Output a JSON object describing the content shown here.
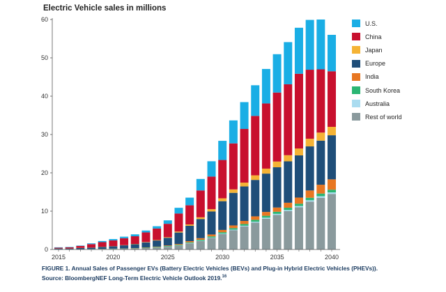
{
  "chart_data": {
    "type": "bar",
    "stacked": true,
    "title": "Electric Vehicle sales in millions",
    "ylim": [
      0,
      60
    ],
    "yticks": [
      0,
      10,
      20,
      30,
      40,
      50,
      60
    ],
    "xtick_labels": [
      "2015",
      "2020",
      "2025",
      "2030",
      "2035",
      "2040"
    ],
    "grid": false,
    "legend_position": "right",
    "categories": [
      "2015",
      "2016",
      "2017",
      "2018",
      "2019",
      "2020",
      "2021",
      "2022",
      "2023",
      "2024",
      "2025",
      "2026",
      "2027",
      "2028",
      "2029",
      "2030",
      "2031",
      "2032",
      "2033",
      "2034",
      "2035",
      "2036",
      "2037",
      "2038",
      "2039",
      "2040"
    ],
    "series": [
      {
        "name": "Rest of world",
        "color": "#8a9a9d",
        "values": [
          0.05,
          0.05,
          0.08,
          0.1,
          0.12,
          0.15,
          0.2,
          0.25,
          0.35,
          0.5,
          0.7,
          1.0,
          1.6,
          2.2,
          3.0,
          4.0,
          5.0,
          6.0,
          7.0,
          8.0,
          9.0,
          10.0,
          11.0,
          12.5,
          13.5,
          14.5
        ]
      },
      {
        "name": "Australia",
        "color": "#aadcf0",
        "values": [
          0,
          0,
          0,
          0,
          0,
          0,
          0,
          0,
          0.02,
          0.03,
          0.05,
          0.05,
          0.08,
          0.1,
          0.12,
          0.15,
          0.18,
          0.2,
          0.25,
          0.3,
          0.3,
          0.3,
          0.35,
          0.35,
          0.4,
          0.4
        ]
      },
      {
        "name": "South Korea",
        "color": "#2bb673",
        "values": [
          0,
          0,
          0,
          0.02,
          0.03,
          0.05,
          0.05,
          0.07,
          0.1,
          0.12,
          0.15,
          0.18,
          0.2,
          0.25,
          0.3,
          0.35,
          0.4,
          0.45,
          0.5,
          0.5,
          0.55,
          0.6,
          0.6,
          0.65,
          0.7,
          0.7
        ]
      },
      {
        "name": "India",
        "color": "#e87722",
        "values": [
          0,
          0,
          0,
          0,
          0.02,
          0.02,
          0.03,
          0.05,
          0.08,
          0.1,
          0.15,
          0.2,
          0.3,
          0.4,
          0.5,
          0.6,
          0.7,
          0.8,
          0.9,
          1.0,
          1.1,
          1.3,
          1.6,
          1.9,
          2.3,
          2.7
        ]
      },
      {
        "name": "Europe",
        "color": "#1f4e79",
        "values": [
          0.2,
          0.2,
          0.3,
          0.35,
          0.5,
          0.6,
          0.8,
          1.0,
          1.3,
          1.6,
          2.0,
          3.0,
          4.0,
          5.0,
          6.0,
          7.5,
          8.5,
          9.0,
          9.5,
          10.0,
          10.5,
          10.8,
          11.0,
          11.5,
          11.5,
          11.5
        ]
      },
      {
        "name": "Japan",
        "color": "#f5b335",
        "values": [
          0.02,
          0.02,
          0.03,
          0.03,
          0.04,
          0.05,
          0.06,
          0.08,
          0.1,
          0.12,
          0.15,
          0.25,
          0.35,
          0.45,
          0.6,
          0.75,
          0.9,
          1.0,
          1.2,
          1.3,
          1.5,
          1.6,
          1.8,
          2.0,
          2.1,
          2.2
        ]
      },
      {
        "name": "China",
        "color": "#c8102e",
        "values": [
          0.2,
          0.3,
          0.5,
          0.9,
          1.2,
          1.5,
          1.8,
          2.0,
          2.5,
          3.0,
          3.5,
          4.7,
          5.0,
          7.0,
          8.5,
          10.0,
          12.0,
          14.0,
          15.5,
          17.0,
          18.0,
          18.5,
          19.5,
          18.0,
          16.5,
          14.5
        ]
      },
      {
        "name": "U.S.",
        "color": "#1aaee5",
        "values": [
          0.1,
          0.1,
          0.1,
          0.2,
          0.3,
          0.35,
          0.4,
          0.5,
          0.5,
          0.6,
          0.9,
          1.5,
          2.0,
          3.0,
          4.0,
          5.0,
          6.0,
          7.0,
          8.0,
          9.0,
          10.0,
          11.0,
          12.0,
          13.0,
          13.0,
          9.5
        ]
      }
    ],
    "legend_order": [
      "U.S.",
      "China",
      "Japan",
      "Europe",
      "India",
      "South Korea",
      "Australia",
      "Rest of world"
    ]
  },
  "footer": {
    "line1": "FIGURE 1. Annual Sales of Passenger EVs (Battery Electric Vehicles (BEVs) and Plug-in Hybrid Electric Vehicles (PHEVs)).",
    "line2": "Source: BloombergNEF Long-Term Electric Vehicle Outlook 2019.",
    "line2_sup": "16"
  }
}
